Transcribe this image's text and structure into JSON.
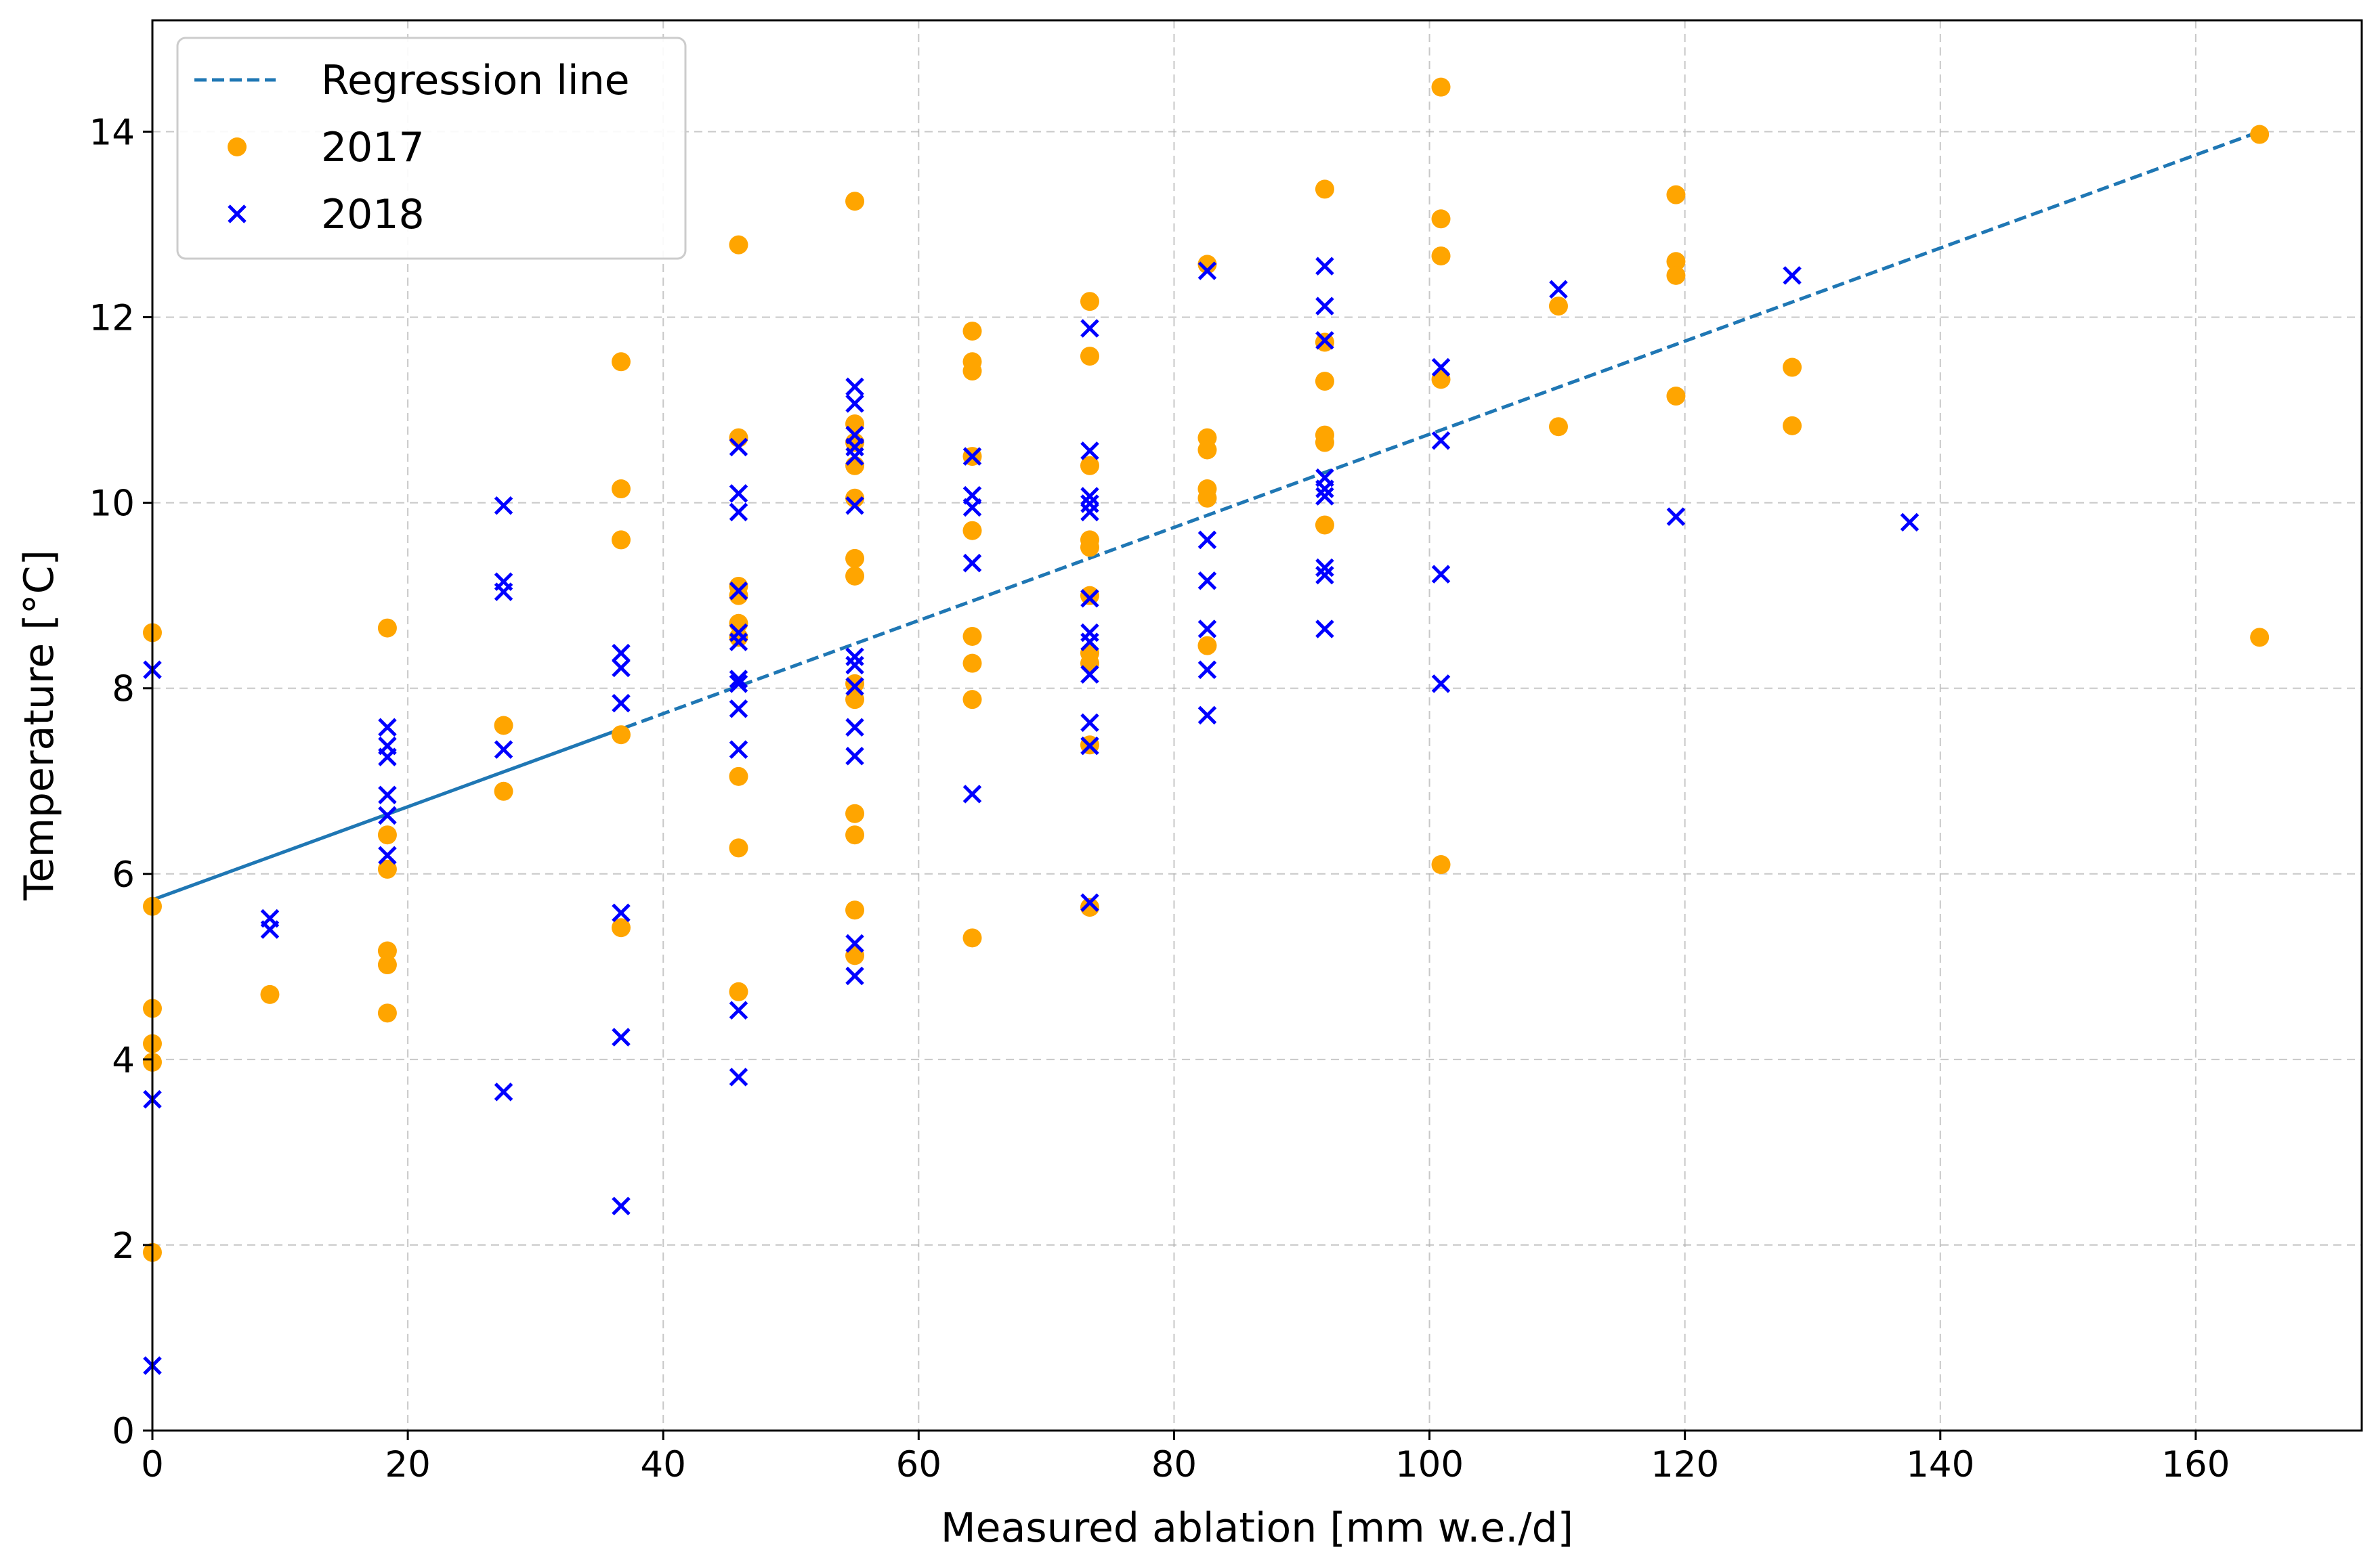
{
  "chart_data": {
    "type": "scatter",
    "title": "",
    "xlabel": "Measured ablation [mm w.e./d]",
    "ylabel": "Temperature [°C]",
    "xlim": [
      0,
      173
    ],
    "ylim": [
      0,
      15.2
    ],
    "xticks": [
      0,
      20,
      40,
      60,
      80,
      100,
      120,
      140,
      160
    ],
    "yticks": [
      0,
      2,
      4,
      6,
      8,
      10,
      12,
      14
    ],
    "grid": true,
    "legend_position": "top-left",
    "regression": {
      "name": "Regression line",
      "color": "#1f77b4",
      "x0": 0,
      "y0": 5.72,
      "x1": 165,
      "y1": 14.0,
      "solid_until_x": 37,
      "style": "solid-then-dashed"
    },
    "series": [
      {
        "name": "2017",
        "marker": "circle",
        "color": "#ffa500",
        "points": [
          [
            0,
            8.6
          ],
          [
            0,
            5.65
          ],
          [
            0,
            4.55
          ],
          [
            0,
            4.17
          ],
          [
            0,
            3.97
          ],
          [
            0,
            1.92
          ],
          [
            9.2,
            4.7
          ],
          [
            18.4,
            8.65
          ],
          [
            18.4,
            6.42
          ],
          [
            18.4,
            6.05
          ],
          [
            18.4,
            5.17
          ],
          [
            18.4,
            5.02
          ],
          [
            18.4,
            4.5
          ],
          [
            27.5,
            7.6
          ],
          [
            27.5,
            6.89
          ],
          [
            36.7,
            11.52
          ],
          [
            36.7,
            10.15
          ],
          [
            36.7,
            9.6
          ],
          [
            36.7,
            7.5
          ],
          [
            36.7,
            5.42
          ],
          [
            45.9,
            12.78
          ],
          [
            45.9,
            10.7
          ],
          [
            45.9,
            9.1
          ],
          [
            45.9,
            9.0
          ],
          [
            45.9,
            8.7
          ],
          [
            45.9,
            8.55
          ],
          [
            45.9,
            7.05
          ],
          [
            45.9,
            6.28
          ],
          [
            45.9,
            4.73
          ],
          [
            55,
            13.25
          ],
          [
            55,
            10.85
          ],
          [
            55,
            10.65
          ],
          [
            55,
            10.4
          ],
          [
            55,
            10.05
          ],
          [
            55,
            9.4
          ],
          [
            55,
            9.21
          ],
          [
            55,
            8.05
          ],
          [
            55,
            7.88
          ],
          [
            55,
            6.65
          ],
          [
            55,
            6.42
          ],
          [
            55,
            5.61
          ],
          [
            55,
            5.12
          ],
          [
            64.2,
            11.85
          ],
          [
            64.2,
            11.52
          ],
          [
            64.2,
            11.42
          ],
          [
            64.2,
            10.5
          ],
          [
            64.2,
            9.7
          ],
          [
            64.2,
            8.56
          ],
          [
            64.2,
            8.27
          ],
          [
            64.2,
            7.88
          ],
          [
            64.2,
            5.31
          ],
          [
            73.4,
            12.17
          ],
          [
            73.4,
            11.58
          ],
          [
            73.4,
            10.4
          ],
          [
            73.4,
            9.6
          ],
          [
            73.4,
            9.52
          ],
          [
            73.4,
            9.0
          ],
          [
            73.4,
            8.38
          ],
          [
            73.4,
            8.27
          ],
          [
            73.4,
            7.39
          ],
          [
            73.4,
            5.64
          ],
          [
            82.6,
            12.57
          ],
          [
            82.6,
            10.7
          ],
          [
            82.6,
            10.57
          ],
          [
            82.6,
            10.15
          ],
          [
            82.6,
            10.05
          ],
          [
            82.6,
            8.46
          ],
          [
            91.8,
            13.38
          ],
          [
            91.8,
            11.73
          ],
          [
            91.8,
            11.31
          ],
          [
            91.8,
            10.73
          ],
          [
            91.8,
            10.65
          ],
          [
            91.8,
            9.76
          ],
          [
            100.9,
            14.48
          ],
          [
            100.9,
            13.06
          ],
          [
            100.9,
            12.66
          ],
          [
            100.9,
            11.33
          ],
          [
            100.9,
            6.1
          ],
          [
            110.1,
            12.12
          ],
          [
            110.1,
            10.82
          ],
          [
            119.3,
            13.32
          ],
          [
            119.3,
            12.6
          ],
          [
            119.3,
            12.45
          ],
          [
            119.3,
            11.15
          ],
          [
            128.4,
            11.46
          ],
          [
            128.4,
            10.83
          ],
          [
            165,
            13.97
          ],
          [
            165,
            8.55
          ]
        ]
      },
      {
        "name": "2018",
        "marker": "x",
        "color": "#0000ff",
        "points": [
          [
            0,
            8.2
          ],
          [
            0,
            3.57
          ],
          [
            0,
            0.7
          ],
          [
            9.2,
            5.52
          ],
          [
            9.2,
            5.4
          ],
          [
            18.4,
            7.58
          ],
          [
            18.4,
            7.38
          ],
          [
            18.4,
            7.26
          ],
          [
            18.4,
            6.85
          ],
          [
            18.4,
            6.63
          ],
          [
            18.4,
            6.2
          ],
          [
            27.5,
            9.97
          ],
          [
            27.5,
            9.15
          ],
          [
            27.5,
            9.04
          ],
          [
            27.5,
            7.34
          ],
          [
            27.5,
            3.65
          ],
          [
            36.7,
            8.38
          ],
          [
            36.7,
            8.22
          ],
          [
            36.7,
            7.84
          ],
          [
            36.7,
            5.58
          ],
          [
            36.7,
            4.24
          ],
          [
            36.7,
            2.42
          ],
          [
            45.9,
            10.6
          ],
          [
            45.9,
            10.1
          ],
          [
            45.9,
            9.9
          ],
          [
            45.9,
            9.05
          ],
          [
            45.9,
            8.6
          ],
          [
            45.9,
            8.5
          ],
          [
            45.9,
            8.1
          ],
          [
            45.9,
            8.05
          ],
          [
            45.9,
            7.78
          ],
          [
            45.9,
            7.34
          ],
          [
            45.9,
            4.53
          ],
          [
            45.9,
            3.81
          ],
          [
            55,
            11.25
          ],
          [
            55,
            11.07
          ],
          [
            55,
            10.73
          ],
          [
            55,
            10.6
          ],
          [
            55,
            10.5
          ],
          [
            55,
            9.97
          ],
          [
            55,
            8.34
          ],
          [
            55,
            8.25
          ],
          [
            55,
            8.02
          ],
          [
            55,
            7.58
          ],
          [
            55,
            7.27
          ],
          [
            55,
            5.25
          ],
          [
            55,
            4.9
          ],
          [
            64.2,
            10.5
          ],
          [
            64.2,
            10.08
          ],
          [
            64.2,
            9.95
          ],
          [
            64.2,
            9.35
          ],
          [
            64.2,
            6.86
          ],
          [
            73.4,
            11.88
          ],
          [
            73.4,
            10.56
          ],
          [
            73.4,
            10.07
          ],
          [
            73.4,
            9.99
          ],
          [
            73.4,
            9.9
          ],
          [
            73.4,
            8.97
          ],
          [
            73.4,
            8.6
          ],
          [
            73.4,
            8.5
          ],
          [
            73.4,
            8.15
          ],
          [
            73.4,
            7.63
          ],
          [
            73.4,
            7.38
          ],
          [
            73.4,
            5.69
          ],
          [
            82.6,
            12.5
          ],
          [
            82.6,
            9.6
          ],
          [
            82.6,
            9.16
          ],
          [
            82.6,
            8.64
          ],
          [
            82.6,
            8.2
          ],
          [
            82.6,
            7.71
          ],
          [
            91.8,
            12.55
          ],
          [
            91.8,
            12.12
          ],
          [
            91.8,
            11.75
          ],
          [
            91.8,
            10.27
          ],
          [
            91.8,
            10.15
          ],
          [
            91.8,
            10.07
          ],
          [
            91.8,
            9.3
          ],
          [
            91.8,
            9.22
          ],
          [
            91.8,
            8.64
          ],
          [
            100.9,
            11.46
          ],
          [
            100.9,
            10.67
          ],
          [
            100.9,
            9.23
          ],
          [
            100.9,
            8.05
          ],
          [
            110.1,
            12.3
          ],
          [
            119.3,
            9.85
          ],
          [
            128.4,
            12.45
          ],
          [
            137.6,
            9.79
          ]
        ]
      }
    ]
  }
}
